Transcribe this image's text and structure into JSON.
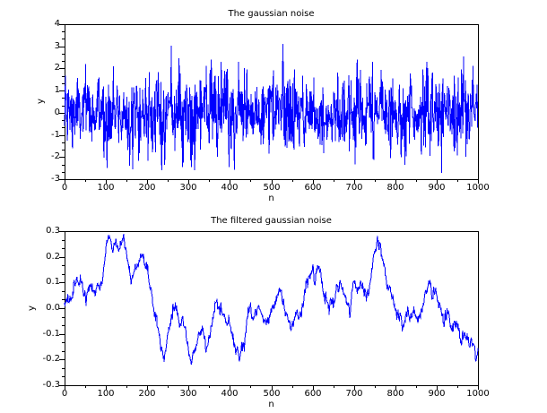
{
  "figure": {
    "background": "#ffffff",
    "axis_color": "#000000",
    "series_color": "#0000ff"
  },
  "chart_data": [
    {
      "type": "line",
      "title": "The gaussian noise",
      "xlabel": "n",
      "ylabel": "y",
      "xlim": [
        0,
        1000
      ],
      "ylim": [
        -3,
        4
      ],
      "xtick_labels": [
        "0",
        "100",
        "200",
        "300",
        "400",
        "500",
        "600",
        "700",
        "800",
        "900",
        "1000"
      ],
      "ytick_labels": [
        "4",
        "3",
        "2",
        "1",
        "0",
        "-1",
        "-2",
        "-3"
      ],
      "x_minor_subticks": 1,
      "y_minor_subticks": 2,
      "grid": false,
      "legend": "none",
      "series": [
        {
          "name": "gaussian noise",
          "color": "#0000ff",
          "n_points": 1000,
          "mean": 0,
          "std": 0.9,
          "seed": 1234,
          "clip": [
            -2.6,
            2.6
          ],
          "notable_extremes": [
            [
              165,
              -2.55
            ],
            [
              235,
              -2.6
            ],
            [
              258,
              3.03
            ],
            [
              355,
              2.4
            ],
            [
              398,
              -2.45
            ],
            [
              528,
              3.1
            ],
            [
              708,
              2.4
            ],
            [
              745,
              2.3
            ],
            [
              912,
              -2.72
            ],
            [
              965,
              2.55
            ]
          ]
        }
      ]
    },
    {
      "type": "line",
      "title": "The filtered gaussian noise",
      "xlabel": "n",
      "ylabel": "y",
      "xlim": [
        0,
        1000
      ],
      "ylim": [
        -0.3,
        0.3
      ],
      "xtick_labels": [
        "0",
        "100",
        "200",
        "300",
        "400",
        "500",
        "600",
        "700",
        "800",
        "900",
        "1000"
      ],
      "ytick_labels": [
        "0.3",
        "0.2",
        "0.1",
        "0.0",
        "-0.1",
        "-0.2",
        "-0.3"
      ],
      "x_minor_subticks": 1,
      "y_minor_subticks": 2,
      "grid": false,
      "legend": "none",
      "series": [
        {
          "name": "filtered gaussian noise",
          "color": "#0000ff",
          "n_points": 1001,
          "seed": 77,
          "jitter_std": 0.012,
          "jitter_smooth": 0.5,
          "clip": [
            -0.295,
            0.295
          ],
          "keypoints": [
            [
              0,
              0.005
            ],
            [
              6,
              0.03
            ],
            [
              12,
              0.02
            ],
            [
              18,
              0.05
            ],
            [
              24,
              0.08
            ],
            [
              30,
              0.14
            ],
            [
              34,
              0.115
            ],
            [
              40,
              0.13
            ],
            [
              46,
              0.06
            ],
            [
              52,
              0.02
            ],
            [
              58,
              0.065
            ],
            [
              64,
              0.085
            ],
            [
              70,
              0.06
            ],
            [
              76,
              0.095
            ],
            [
              82,
              0.11
            ],
            [
              86,
              0.08
            ],
            [
              92,
              0.115
            ],
            [
              96,
              0.17
            ],
            [
              100,
              0.22
            ],
            [
              105,
              0.255
            ],
            [
              110,
              0.265
            ],
            [
              114,
              0.225
            ],
            [
              119,
              0.22
            ],
            [
              123,
              0.26
            ],
            [
              128,
              0.245
            ],
            [
              132,
              0.235
            ],
            [
              137,
              0.25
            ],
            [
              141,
              0.27
            ],
            [
              145,
              0.255
            ],
            [
              149,
              0.225
            ],
            [
              154,
              0.175
            ],
            [
              158,
              0.12
            ],
            [
              161,
              0.1
            ],
            [
              166,
              0.135
            ],
            [
              171,
              0.145
            ],
            [
              176,
              0.16
            ],
            [
              181,
              0.175
            ],
            [
              186,
              0.19
            ],
            [
              191,
              0.2
            ],
            [
              196,
              0.17
            ],
            [
              201,
              0.15
            ],
            [
              206,
              0.1
            ],
            [
              211,
              0.05
            ],
            [
              216,
              0.005
            ],
            [
              221,
              -0.03
            ],
            [
              226,
              -0.06
            ],
            [
              231,
              -0.12
            ],
            [
              236,
              -0.17
            ],
            [
              241,
              -0.2
            ],
            [
              246,
              -0.15
            ],
            [
              251,
              -0.115
            ],
            [
              256,
              -0.07
            ],
            [
              261,
              -0.03
            ],
            [
              266,
              0.02
            ],
            [
              271,
              -0.005
            ],
            [
              276,
              -0.045
            ],
            [
              281,
              -0.075
            ],
            [
              286,
              -0.04
            ],
            [
              291,
              -0.09
            ],
            [
              296,
              -0.13
            ],
            [
              301,
              -0.175
            ],
            [
              308,
              -0.21
            ],
            [
              313,
              -0.17
            ],
            [
              318,
              -0.135
            ],
            [
              323,
              -0.11
            ],
            [
              328,
              -0.095
            ],
            [
              333,
              -0.08
            ],
            [
              338,
              -0.12
            ],
            [
              343,
              -0.15
            ],
            [
              348,
              -0.12
            ],
            [
              353,
              -0.08
            ],
            [
              358,
              -0.04
            ],
            [
              363,
              0
            ],
            [
              368,
              0.03
            ],
            [
              372,
              0
            ],
            [
              376,
              -0.04
            ],
            [
              380,
              -0.02
            ],
            [
              384,
              -0.01
            ],
            [
              389,
              -0.045
            ],
            [
              394,
              -0.06
            ],
            [
              399,
              -0.065
            ],
            [
              404,
              -0.095
            ],
            [
              409,
              -0.15
            ],
            [
              414,
              -0.17
            ],
            [
              418,
              -0.155
            ],
            [
              423,
              -0.19
            ],
            [
              428,
              -0.15
            ],
            [
              433,
              -0.13
            ],
            [
              437,
              -0.115
            ],
            [
              441,
              -0.06
            ],
            [
              445,
              -0.015
            ],
            [
              449,
              0.01
            ],
            [
              453,
              -0.02
            ],
            [
              458,
              -0.035
            ],
            [
              463,
              -0.025
            ],
            [
              468,
              -0.01
            ],
            [
              473,
              0
            ],
            [
              478,
              -0.03
            ],
            [
              483,
              -0.045
            ],
            [
              488,
              -0.055
            ],
            [
              493,
              -0.04
            ],
            [
              498,
              -0.03
            ],
            [
              503,
              0
            ],
            [
              508,
              0.025
            ],
            [
              513,
              0.05
            ],
            [
              518,
              0.06
            ],
            [
              523,
              0.07
            ],
            [
              528,
              0.03
            ],
            [
              533,
              -0.01
            ],
            [
              538,
              -0.04
            ],
            [
              543,
              -0.06
            ],
            [
              548,
              -0.07
            ],
            [
              553,
              -0.06
            ],
            [
              558,
              -0.02
            ],
            [
              562,
              0
            ],
            [
              566,
              -0.025
            ],
            [
              570,
              -0.04
            ],
            [
              575,
              0
            ],
            [
              580,
              0.05
            ],
            [
              585,
              0.1
            ],
            [
              590,
              0.12
            ],
            [
              595,
              0.14
            ],
            [
              600,
              0.155
            ],
            [
              605,
              0.1
            ],
            [
              610,
              0.13
            ],
            [
              615,
              0.16
            ],
            [
              620,
              0.12
            ],
            [
              625,
              0.08
            ],
            [
              630,
              0.05
            ],
            [
              635,
              0.03
            ],
            [
              640,
              0.02
            ],
            [
              645,
              0.035
            ],
            [
              650,
              0.02
            ],
            [
              655,
              0.05
            ],
            [
              660,
              0.07
            ],
            [
              665,
              0.09
            ],
            [
              670,
              0.07
            ],
            [
              675,
              0.05
            ],
            [
              680,
              0.04
            ],
            [
              685,
              0.01
            ],
            [
              690,
              -0.02
            ],
            [
              695,
              0.03
            ],
            [
              700,
              0.12
            ],
            [
              704,
              0.09
            ],
            [
              708,
              0.065
            ],
            [
              713,
              0.08
            ],
            [
              718,
              0.09
            ],
            [
              723,
              0.07
            ],
            [
              727,
              0.085
            ],
            [
              731,
              0.05
            ],
            [
              736,
              0.04
            ],
            [
              740,
              0.1
            ],
            [
              744,
              0.13
            ],
            [
              748,
              0.22
            ],
            [
              752,
              0.24
            ],
            [
              757,
              0.265
            ],
            [
              761,
              0.23
            ],
            [
              764,
              0.25
            ],
            [
              768,
              0.2
            ],
            [
              772,
              0.16
            ],
            [
              776,
              0.13
            ],
            [
              780,
              0.1
            ],
            [
              785,
              0.08
            ],
            [
              790,
              0.06
            ],
            [
              795,
              0.04
            ],
            [
              800,
              0.02
            ],
            [
              805,
              -0.02
            ],
            [
              810,
              -0.04
            ],
            [
              814,
              -0.06
            ],
            [
              818,
              -0.08
            ],
            [
              822,
              -0.05
            ],
            [
              826,
              -0.035
            ],
            [
              830,
              -0.01
            ],
            [
              835,
              -0.03
            ],
            [
              840,
              -0.035
            ],
            [
              845,
              -0.02
            ],
            [
              850,
              -0.025
            ],
            [
              855,
              -0.045
            ],
            [
              860,
              -0.02
            ],
            [
              865,
              0
            ],
            [
              870,
              0.03
            ],
            [
              874,
              0.065
            ],
            [
              878,
              0.1
            ],
            [
              882,
              0.08
            ],
            [
              886,
              0.09
            ],
            [
              890,
              0.05
            ],
            [
              894,
              0.075
            ],
            [
              898,
              0.06
            ],
            [
              902,
              0.03
            ],
            [
              906,
              0.01
            ],
            [
              910,
              0
            ],
            [
              915,
              -0.03
            ],
            [
              920,
              -0.045
            ],
            [
              925,
              -0.02
            ],
            [
              930,
              -0.035
            ],
            [
              935,
              -0.06
            ],
            [
              940,
              -0.07
            ],
            [
              945,
              -0.05
            ],
            [
              950,
              -0.065
            ],
            [
              955,
              -0.1
            ],
            [
              960,
              -0.12
            ],
            [
              964,
              -0.09
            ],
            [
              968,
              -0.085
            ],
            [
              972,
              -0.11
            ],
            [
              976,
              -0.135
            ],
            [
              980,
              -0.155
            ],
            [
              984,
              -0.115
            ],
            [
              988,
              -0.135
            ],
            [
              992,
              -0.17
            ],
            [
              996,
              -0.2
            ],
            [
              1000,
              -0.16
            ]
          ]
        }
      ]
    }
  ]
}
